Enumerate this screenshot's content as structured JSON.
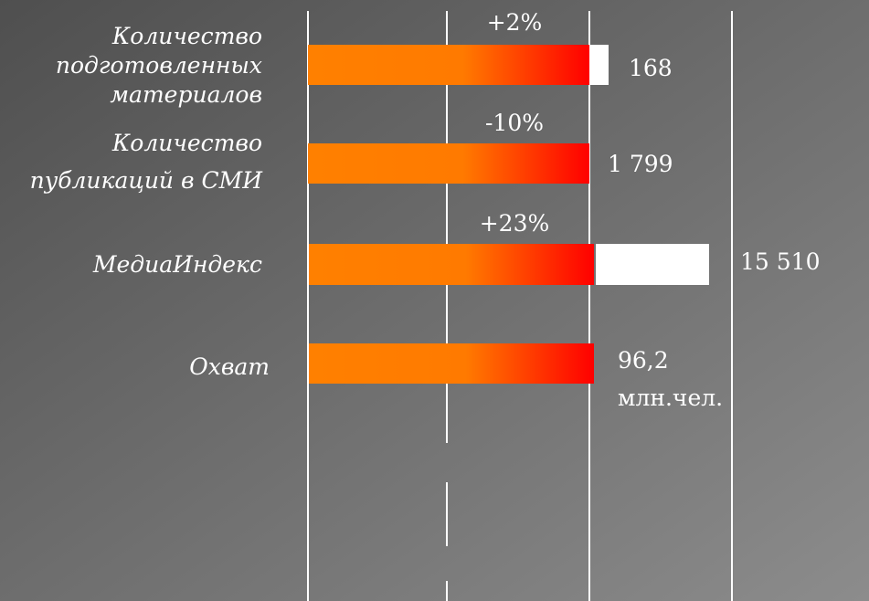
{
  "rows": [
    {
      "label": [
        "Количество",
        "подготовленных",
        "материалов"
      ],
      "change": "+2%",
      "value": [
        "168"
      ]
    },
    {
      "label": [
        "Количество",
        "публикаций в СМИ"
      ],
      "change": "-10%",
      "value": [
        "1 799"
      ]
    },
    {
      "label": [
        "МедиаИндекс"
      ],
      "change": "+23%",
      "value": [
        "15 510"
      ]
    },
    {
      "label": [
        "Охват"
      ],
      "value": [
        "96,2",
        "млн.чел."
      ]
    }
  ]
}
